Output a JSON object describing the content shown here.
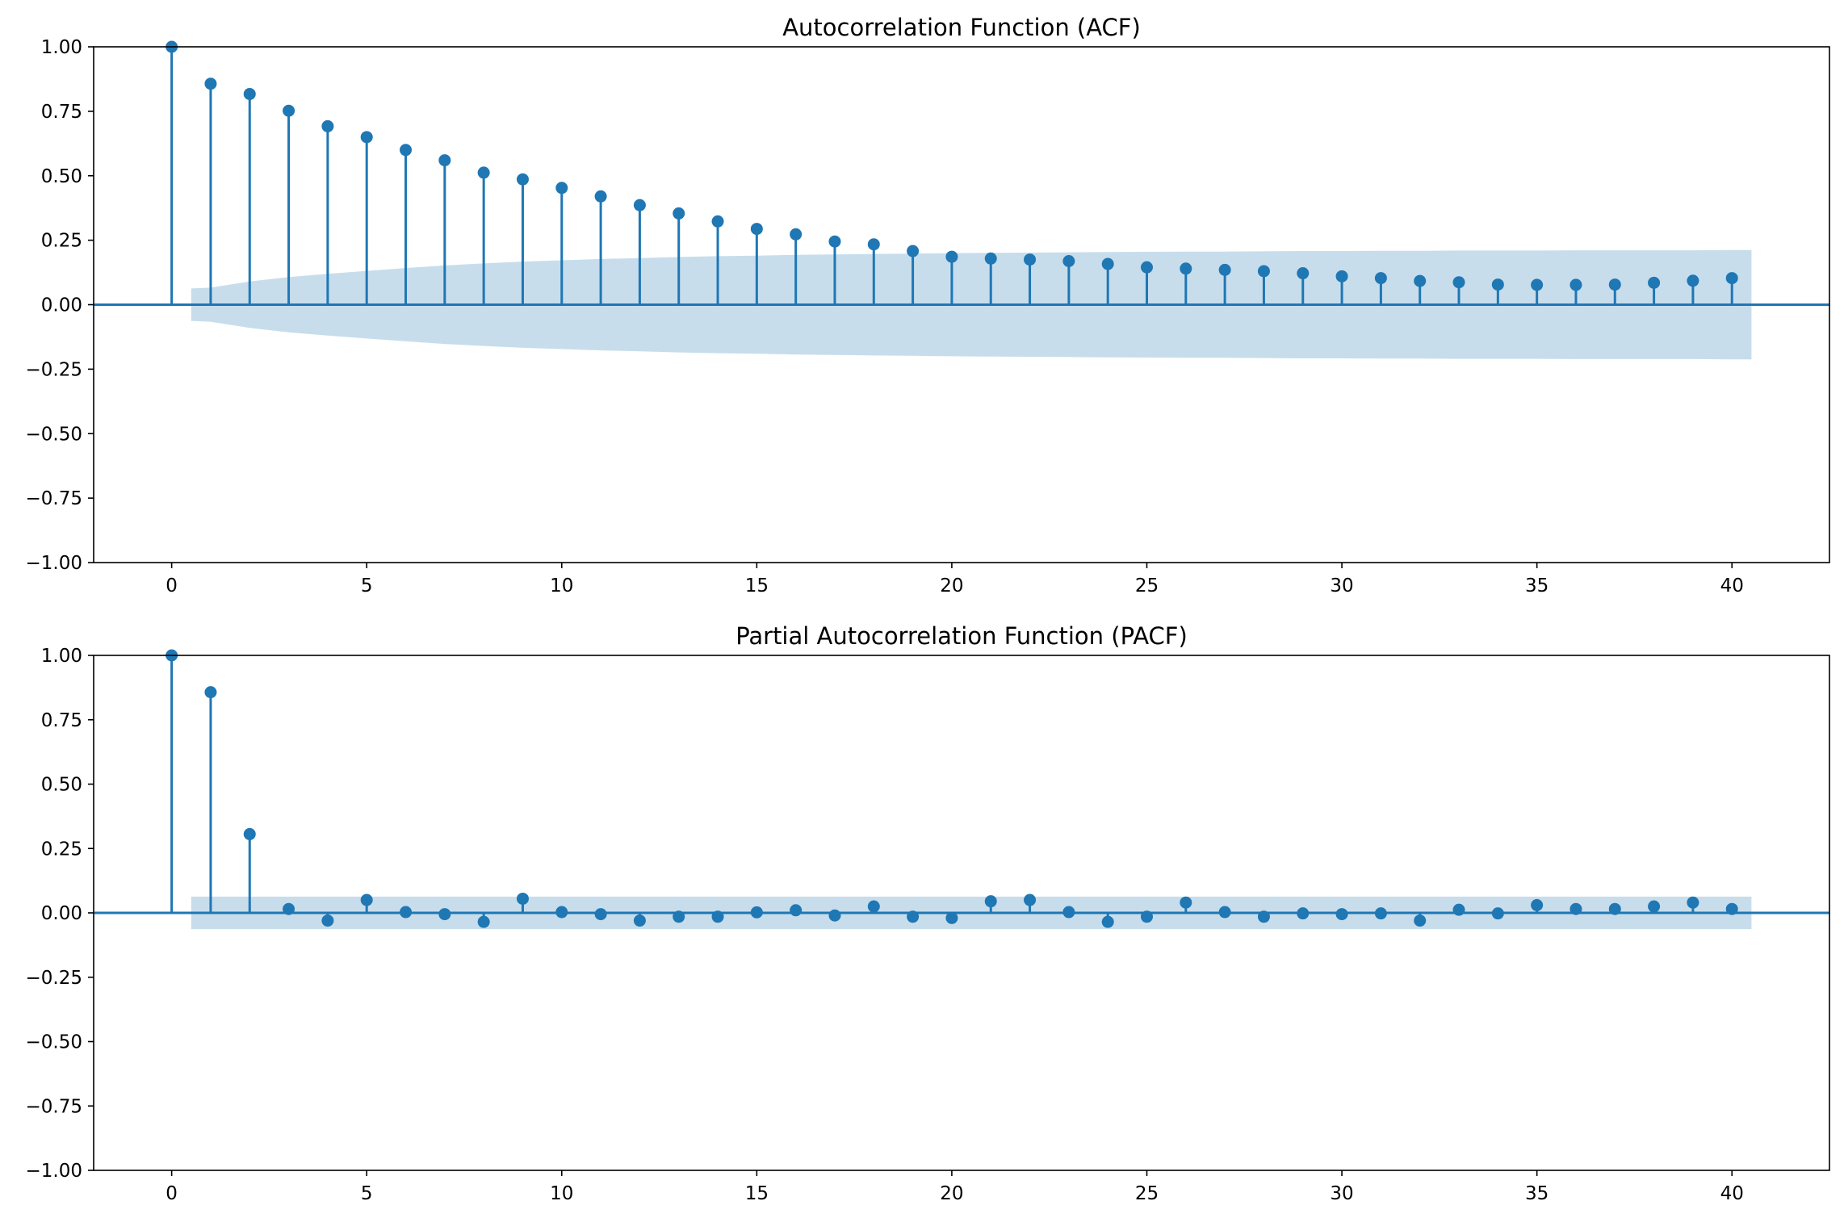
{
  "chart_data": [
    {
      "type": "stem",
      "title": "Autocorrelation Function (ACF)",
      "xlabel": "",
      "ylabel": "",
      "xlim": [
        -2,
        42.5
      ],
      "ylim": [
        -1,
        1
      ],
      "xticks": [
        0,
        5,
        10,
        15,
        20,
        25,
        30,
        35,
        40
      ],
      "xtick_labels": [
        "0",
        "5",
        "10",
        "15",
        "20",
        "25",
        "30",
        "35",
        "40"
      ],
      "yticks": [
        -1,
        -0.75,
        -0.5,
        -0.25,
        0,
        0.25,
        0.5,
        0.75,
        1
      ],
      "ytick_labels": [
        "−1.00",
        "−0.75",
        "−0.50",
        "−0.25",
        "0.00",
        "0.25",
        "0.50",
        "0.75",
        "1.00"
      ],
      "lags": [
        0,
        1,
        2,
        3,
        4,
        5,
        6,
        7,
        8,
        9,
        10,
        11,
        12,
        13,
        14,
        15,
        16,
        17,
        18,
        19,
        20,
        21,
        22,
        23,
        24,
        25,
        26,
        27,
        28,
        29,
        30,
        31,
        32,
        33,
        34,
        35,
        36,
        37,
        38,
        39,
        40
      ],
      "values": [
        1.0,
        0.857,
        0.817,
        0.752,
        0.692,
        0.65,
        0.6,
        0.56,
        0.512,
        0.486,
        0.453,
        0.42,
        0.386,
        0.354,
        0.323,
        0.294,
        0.273,
        0.245,
        0.234,
        0.208,
        0.186,
        0.179,
        0.175,
        0.169,
        0.158,
        0.145,
        0.14,
        0.135,
        0.13,
        0.122,
        0.11,
        0.103,
        0.092,
        0.087,
        0.078,
        0.077,
        0.077,
        0.078,
        0.085,
        0.093,
        0.103
      ],
      "confidence_band": {
        "x": [
          0.5,
          1,
          2,
          3,
          4,
          5,
          6,
          7,
          8,
          9,
          10,
          11,
          12,
          13,
          14,
          15,
          16,
          17,
          18,
          19,
          20,
          21,
          22,
          23,
          24,
          25,
          26,
          27,
          28,
          29,
          30,
          31,
          32,
          33,
          34,
          35,
          36,
          37,
          38,
          39,
          40,
          40.5
        ],
        "upper": [
          0.063,
          0.066,
          0.09,
          0.107,
          0.12,
          0.131,
          0.142,
          0.152,
          0.16,
          0.167,
          0.172,
          0.177,
          0.181,
          0.185,
          0.188,
          0.19,
          0.193,
          0.195,
          0.197,
          0.198,
          0.2,
          0.201,
          0.202,
          0.203,
          0.204,
          0.205,
          0.206,
          0.206,
          0.207,
          0.208,
          0.208,
          0.209,
          0.209,
          0.21,
          0.21,
          0.21,
          0.211,
          0.211,
          0.211,
          0.211,
          0.212,
          0.212
        ]
      },
      "grid": false,
      "colors": {
        "stem": "#1f77b4",
        "band": "#1f77b4",
        "band_opacity": 0.25
      }
    },
    {
      "type": "stem",
      "title": "Partial Autocorrelation Function (PACF)",
      "xlabel": "",
      "ylabel": "",
      "xlim": [
        -2,
        42.5
      ],
      "ylim": [
        -1,
        1
      ],
      "xticks": [
        0,
        5,
        10,
        15,
        20,
        25,
        30,
        35,
        40
      ],
      "xtick_labels": [
        "0",
        "5",
        "10",
        "15",
        "20",
        "25",
        "30",
        "35",
        "40"
      ],
      "yticks": [
        -1,
        -0.75,
        -0.5,
        -0.25,
        0,
        0.25,
        0.5,
        0.75,
        1
      ],
      "ytick_labels": [
        "−1.00",
        "−0.75",
        "−0.50",
        "−0.25",
        "0.00",
        "0.25",
        "0.50",
        "0.75",
        "1.00"
      ],
      "lags": [
        0,
        1,
        2,
        3,
        4,
        5,
        6,
        7,
        8,
        9,
        10,
        11,
        12,
        13,
        14,
        15,
        16,
        17,
        18,
        19,
        20,
        21,
        22,
        23,
        24,
        25,
        26,
        27,
        28,
        29,
        30,
        31,
        32,
        33,
        34,
        35,
        36,
        37,
        38,
        39,
        40
      ],
      "values": [
        1.0,
        0.857,
        0.306,
        0.015,
        -0.03,
        0.05,
        0.003,
        -0.005,
        -0.035,
        0.055,
        0.003,
        -0.005,
        -0.03,
        -0.015,
        -0.015,
        0.002,
        0.01,
        -0.01,
        0.025,
        -0.015,
        -0.02,
        0.045,
        0.05,
        0.003,
        -0.035,
        -0.015,
        0.04,
        0.003,
        -0.015,
        -0.002,
        -0.005,
        -0.002,
        -0.03,
        0.012,
        -0.002,
        0.03,
        0.015,
        0.015,
        0.025,
        0.04,
        0.015
      ],
      "confidence_band": {
        "x": [
          0.5,
          40.5
        ],
        "upper": [
          0.063,
          0.063
        ]
      },
      "grid": false,
      "colors": {
        "stem": "#1f77b4",
        "band": "#1f77b4",
        "band_opacity": 0.25
      }
    }
  ]
}
